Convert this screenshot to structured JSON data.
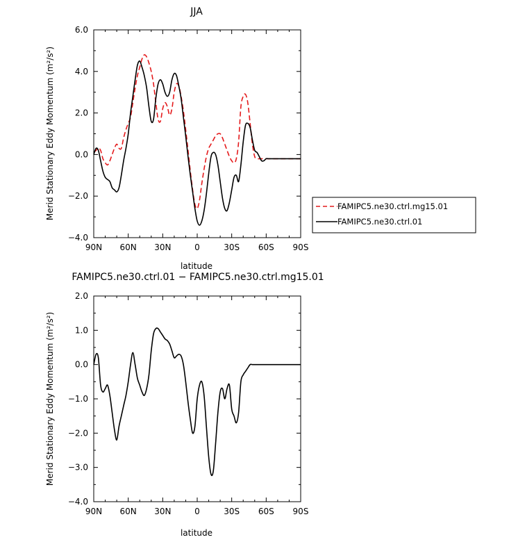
{
  "chart_data": [
    {
      "type": "line",
      "title": "JJA",
      "xlabel": "latitude",
      "ylabel": "Merid Stationary Eddy Momentum (m²/s²)",
      "ylim": [
        -4.0,
        6.0
      ],
      "xlim": [
        90,
        -90
      ],
      "xticks": [
        90,
        60,
        30,
        0,
        -30,
        -60,
        -90
      ],
      "xtick_labels": [
        "90N",
        "60N",
        "30N",
        "0",
        "30S",
        "60S",
        "90S"
      ],
      "yticks": [
        -4,
        -2,
        0,
        2,
        4,
        6
      ],
      "ytick_labels": [
        "−4.0",
        "−2.0",
        "0.0",
        "2.0",
        "4.0",
        "6.0"
      ],
      "grid": false,
      "legend_position": "outside-right",
      "series": [
        {
          "name": "FAMIPC5.ne30.ctrl.mg15.01",
          "color": "#e41a1c",
          "dash": "dashed",
          "x": [
            90,
            88,
            86,
            84,
            82,
            80,
            78,
            76,
            74,
            72,
            70,
            68,
            66,
            64,
            62,
            60,
            58,
            56,
            54,
            52,
            50,
            48,
            46,
            44,
            42,
            40,
            38,
            36,
            34,
            32,
            30,
            28,
            26,
            24,
            22,
            20,
            18,
            16,
            14,
            12,
            10,
            8,
            6,
            4,
            2,
            0,
            -2,
            -4,
            -6,
            -8,
            -10,
            -12,
            -14,
            -16,
            -18,
            -20,
            -22,
            -24,
            -26,
            -28,
            -30,
            -32,
            -34,
            -36,
            -38,
            -40,
            -42,
            -44,
            -46,
            -48,
            -50,
            -52,
            -54,
            -56,
            -58,
            -60,
            -62,
            -64,
            -66,
            -68,
            -70,
            -72,
            -74,
            -76,
            -78,
            -80,
            -82,
            -84,
            -86,
            -88,
            -90
          ],
          "y": [
            0.1,
            0.2,
            0.3,
            0.2,
            -0.2,
            -0.4,
            -0.5,
            -0.3,
            0.0,
            0.3,
            0.5,
            0.3,
            0.3,
            0.8,
            1.2,
            1.5,
            1.8,
            2.5,
            3.2,
            3.8,
            4.2,
            4.6,
            4.8,
            4.7,
            4.4,
            4.0,
            3.4,
            2.5,
            1.7,
            1.6,
            2.2,
            2.5,
            2.3,
            1.9,
            2.2,
            3.0,
            3.4,
            3.3,
            2.8,
            2.1,
            1.2,
            0.2,
            -0.8,
            -1.7,
            -2.4,
            -2.6,
            -2.2,
            -1.4,
            -0.7,
            -0.1,
            0.3,
            0.5,
            0.7,
            0.9,
            1.0,
            1.0,
            0.8,
            0.5,
            0.2,
            -0.1,
            -0.3,
            -0.4,
            -0.2,
            0.6,
            2.3,
            2.8,
            2.9,
            2.5,
            1.5,
            0.5,
            -0.1,
            -0.2,
            -0.2,
            -0.2,
            -0.2,
            -0.2,
            -0.2,
            -0.2,
            -0.2,
            -0.2,
            -0.2,
            -0.2,
            -0.2,
            -0.2,
            -0.2,
            -0.2,
            -0.2,
            -0.2,
            -0.2,
            -0.2,
            -0.2
          ]
        },
        {
          "name": "FAMIPC5.ne30.ctrl.01",
          "color": "#000000",
          "dash": "solid",
          "x": [
            90,
            88,
            86,
            84,
            82,
            80,
            78,
            76,
            74,
            72,
            70,
            68,
            66,
            64,
            62,
            60,
            58,
            56,
            54,
            52,
            50,
            48,
            46,
            44,
            42,
            40,
            38,
            36,
            34,
            32,
            30,
            28,
            26,
            24,
            22,
            20,
            18,
            16,
            14,
            12,
            10,
            8,
            6,
            4,
            2,
            0,
            -2,
            -4,
            -6,
            -8,
            -10,
            -12,
            -14,
            -16,
            -18,
            -20,
            -22,
            -24,
            -26,
            -28,
            -30,
            -32,
            -34,
            -36,
            -38,
            -40,
            -42,
            -44,
            -46,
            -48,
            -50,
            -52,
            -54,
            -56,
            -58,
            -60,
            -62,
            -64,
            -66,
            -68,
            -70,
            -72,
            -74,
            -76,
            -78,
            -80,
            -82,
            -84,
            -86,
            -88,
            -90
          ],
          "y": [
            0.0,
            0.3,
            0.2,
            -0.3,
            -0.8,
            -1.1,
            -1.2,
            -1.3,
            -1.6,
            -1.7,
            -1.8,
            -1.6,
            -1.0,
            -0.3,
            0.3,
            1.0,
            2.0,
            2.8,
            3.6,
            4.3,
            4.5,
            4.2,
            3.8,
            3.2,
            2.3,
            1.6,
            1.7,
            2.7,
            3.4,
            3.6,
            3.4,
            3.0,
            2.8,
            3.0,
            3.6,
            3.9,
            3.8,
            3.3,
            2.7,
            1.8,
            0.9,
            -0.1,
            -1.0,
            -1.8,
            -2.6,
            -3.2,
            -3.4,
            -3.2,
            -2.7,
            -1.9,
            -0.9,
            -0.1,
            0.1,
            0.0,
            -0.5,
            -1.3,
            -2.1,
            -2.6,
            -2.7,
            -2.3,
            -1.7,
            -1.1,
            -1.0,
            -1.3,
            -0.5,
            0.6,
            1.4,
            1.5,
            1.3,
            0.7,
            0.2,
            0.1,
            -0.1,
            -0.3,
            -0.3,
            -0.2,
            -0.2,
            -0.2,
            -0.2,
            -0.2,
            -0.2,
            -0.2,
            -0.2,
            -0.2,
            -0.2,
            -0.2,
            -0.2,
            -0.2,
            -0.2,
            -0.2,
            -0.2
          ]
        }
      ]
    },
    {
      "type": "line",
      "title": "FAMIPC5.ne30.ctrl.01 − FAMIPC5.ne30.ctrl.mg15.01",
      "xlabel": "latitude",
      "ylabel": "Merid Stationary Eddy Momentum (m²/s²)",
      "ylim": [
        -4.0,
        2.0
      ],
      "xlim": [
        90,
        -90
      ],
      "xticks": [
        90,
        60,
        30,
        0,
        -30,
        -60,
        -90
      ],
      "xtick_labels": [
        "90N",
        "60N",
        "30N",
        "0",
        "30S",
        "60S",
        "90S"
      ],
      "yticks": [
        -4,
        -3,
        -2,
        -1,
        0,
        1,
        2
      ],
      "ytick_labels": [
        "−4.0",
        "−3.0",
        "−2.0",
        "−1.0",
        "0.0",
        "1.0",
        "2.0"
      ],
      "grid": false,
      "series": [
        {
          "color": "#000000",
          "dash": "solid",
          "x": [
            90,
            88,
            86,
            84,
            82,
            80,
            78,
            76,
            74,
            72,
            70,
            68,
            66,
            64,
            62,
            60,
            58,
            56,
            54,
            52,
            50,
            48,
            46,
            44,
            42,
            40,
            38,
            36,
            34,
            32,
            30,
            28,
            26,
            24,
            22,
            20,
            18,
            16,
            14,
            12,
            10,
            8,
            6,
            4,
            2,
            0,
            -2,
            -4,
            -6,
            -8,
            -10,
            -12,
            -14,
            -16,
            -18,
            -20,
            -22,
            -24,
            -26,
            -28,
            -30,
            -32,
            -34,
            -36,
            -38,
            -40,
            -42,
            -44,
            -46,
            -48,
            -50,
            -52,
            -54,
            -56,
            -58,
            -60,
            -62,
            -64,
            -66,
            -68,
            -70,
            -72,
            -74,
            -76,
            -78,
            -80,
            -82,
            -84,
            -86,
            -88,
            -90
          ],
          "y": [
            0.0,
            0.3,
            0.2,
            -0.6,
            -0.8,
            -0.7,
            -0.6,
            -0.9,
            -1.4,
            -1.9,
            -2.2,
            -1.8,
            -1.5,
            -1.2,
            -0.9,
            -0.5,
            0.0,
            0.35,
            0.0,
            -0.4,
            -0.6,
            -0.8,
            -0.9,
            -0.7,
            -0.3,
            0.4,
            0.9,
            1.05,
            1.05,
            0.95,
            0.85,
            0.75,
            0.7,
            0.6,
            0.4,
            0.2,
            0.25,
            0.3,
            0.25,
            0.0,
            -0.5,
            -1.1,
            -1.6,
            -2.0,
            -1.8,
            -1.0,
            -0.6,
            -0.5,
            -0.9,
            -1.8,
            -2.7,
            -3.2,
            -3.1,
            -2.3,
            -1.4,
            -0.8,
            -0.7,
            -1.0,
            -0.7,
            -0.6,
            -1.3,
            -1.5,
            -1.7,
            -1.4,
            -0.5,
            -0.3,
            -0.2,
            -0.1,
            0.0,
            0.0,
            0.0,
            0.0,
            0.0,
            0.0,
            0.0,
            0.0,
            0.0,
            0.0,
            0.0,
            0.0,
            0.0,
            0.0,
            0.0,
            0.0,
            0.0,
            0.0,
            0.0,
            0.0,
            0.0,
            0.0,
            0.0
          ]
        }
      ]
    }
  ]
}
